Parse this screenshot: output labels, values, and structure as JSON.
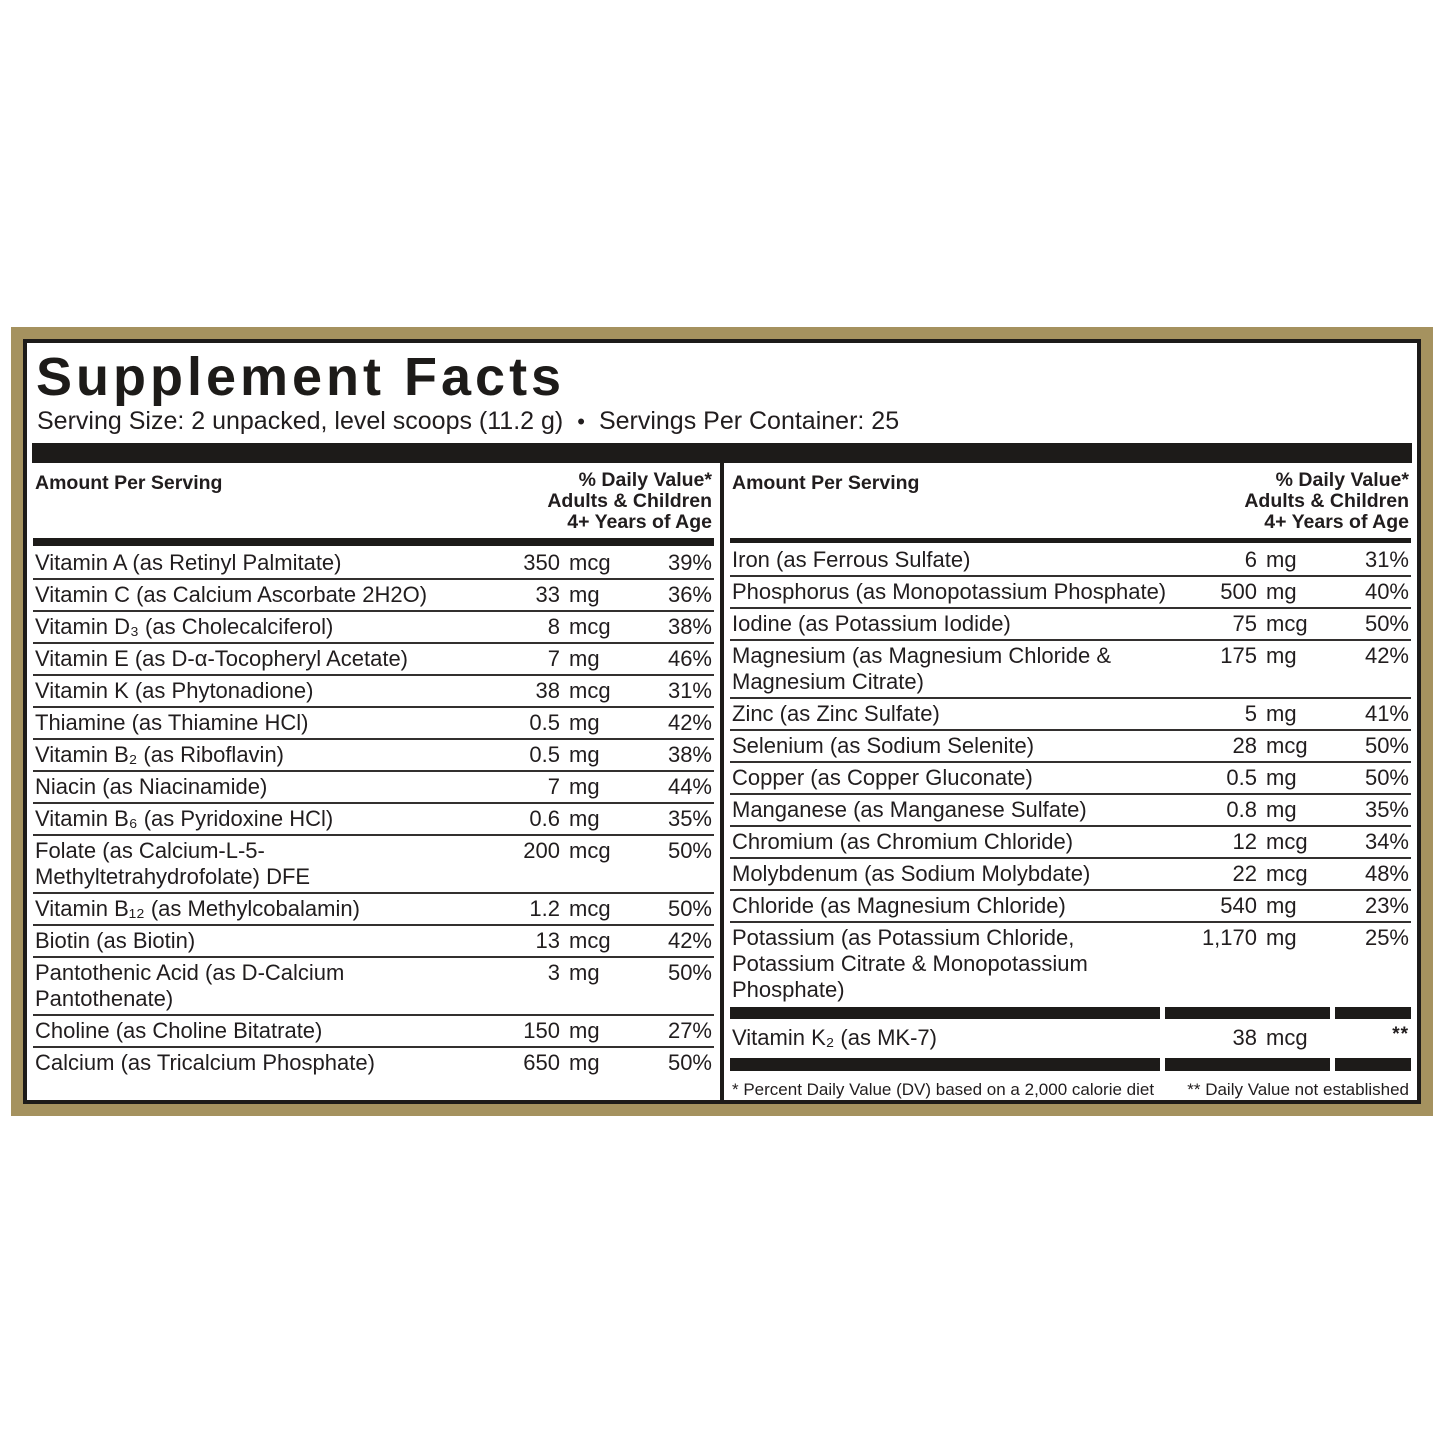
{
  "colors": {
    "border_gold": "#a5925f",
    "bar_black": "#1d1b19",
    "text": "#211d1e"
  },
  "label": {
    "title": "Supplement Facts",
    "serving_size": "Serving Size: 2 unpacked, level scoops (11.2 g)",
    "bullet": "•",
    "servings_per_container": "Servings Per Container: 25"
  },
  "columns": [
    {
      "header": {
        "amount_label": "Amount Per Serving",
        "dv_lines": [
          "% Daily Value*",
          "Adults & Children",
          "4+ Years of Age"
        ]
      },
      "rows": [
        {
          "name": "Vitamin A (as Retinyl Palmitate)",
          "amount": "350",
          "unit": "mcg",
          "dv": "39%"
        },
        {
          "name": "Vitamin C (as Calcium Ascorbate 2H2O)",
          "amount": "33",
          "unit": "mg",
          "dv": "36%"
        },
        {
          "name": "Vitamin D₃ (as Cholecalciferol)",
          "amount": "8",
          "unit": "mcg",
          "dv": "38%"
        },
        {
          "name": "Vitamin E (as D-α-Tocopheryl Acetate)",
          "amount": "7",
          "unit": "mg",
          "dv": "46%"
        },
        {
          "name": "Vitamin K (as Phytonadione)",
          "amount": "38",
          "unit": "mcg",
          "dv": "31%"
        },
        {
          "name": "Thiamine (as Thiamine HCl)",
          "amount": "0.5",
          "unit": "mg",
          "dv": "42%"
        },
        {
          "name": "Vitamin B₂ (as Riboflavin)",
          "amount": "0.5",
          "unit": "mg",
          "dv": "38%"
        },
        {
          "name": "Niacin (as Niacinamide)",
          "amount": "7",
          "unit": "mg",
          "dv": "44%"
        },
        {
          "name": "Vitamin B₆ (as Pyridoxine HCl)",
          "amount": "0.6",
          "unit": "mg",
          "dv": "35%"
        },
        {
          "name": "Folate (as Calcium-L-5-Methyltetrahydrofolate) DFE",
          "amount": "200",
          "unit": "mcg",
          "dv": "50%"
        },
        {
          "name": "Vitamin B₁₂ (as Methylcobalamin)",
          "amount": "1.2",
          "unit": "mcg",
          "dv": "50%"
        },
        {
          "name": "Biotin (as Biotin)",
          "amount": "13",
          "unit": "mcg",
          "dv": "42%"
        },
        {
          "name": "Pantothenic Acid (as D-Calcium Pantothenate)",
          "amount": "3",
          "unit": "mg",
          "dv": "50%"
        },
        {
          "name": "Choline (as Choline Bitatrate)",
          "amount": "150",
          "unit": "mg",
          "dv": "27%"
        },
        {
          "name": "Calcium (as Tricalcium Phosphate)",
          "amount": "650",
          "unit": "mg",
          "dv": "50%"
        }
      ]
    },
    {
      "header": {
        "amount_label": "Amount Per Serving",
        "dv_lines": [
          "% Daily Value*",
          "Adults & Children",
          "4+ Years of Age"
        ]
      },
      "rows": [
        {
          "name": "Iron (as Ferrous Sulfate)",
          "amount": "6",
          "unit": "mg",
          "dv": "31%"
        },
        {
          "name": "Phosphorus (as Monopotassium Phosphate)",
          "amount": "500",
          "unit": "mg",
          "dv": "40%"
        },
        {
          "name": "Iodine (as Potassium Iodide)",
          "amount": "75",
          "unit": "mcg",
          "dv": "50%"
        },
        {
          "name": "Magnesium (as Magnesium Chloride & Magnesium Citrate)",
          "amount": "175",
          "unit": "mg",
          "dv": "42%"
        },
        {
          "name": "Zinc (as Zinc Sulfate)",
          "amount": "5",
          "unit": "mg",
          "dv": "41%"
        },
        {
          "name": "Selenium (as Sodium Selenite)",
          "amount": "28",
          "unit": "mcg",
          "dv": "50%"
        },
        {
          "name": "Copper (as Copper Gluconate)",
          "amount": "0.5",
          "unit": "mg",
          "dv": "50%"
        },
        {
          "name": "Manganese (as Manganese Sulfate)",
          "amount": "0.8",
          "unit": "mg",
          "dv": "35%"
        },
        {
          "name": "Chromium (as Chromium Chloride)",
          "amount": "12",
          "unit": "mcg",
          "dv": "34%"
        },
        {
          "name": "Molybdenum (as Sodium Molybdate)",
          "amount": "22",
          "unit": "mcg",
          "dv": "48%"
        },
        {
          "name": "Chloride (as Magnesium Chloride)",
          "amount": "540",
          "unit": "mg",
          "dv": "23%"
        },
        {
          "name": "Potassium (as Potassium Chloride, Potassium Citrate & Monopotassium Phosphate)",
          "amount": "1,170",
          "unit": "mg",
          "dv": "25%"
        }
      ],
      "k2_row": {
        "name": "Vitamin K₂ (as MK-7)",
        "amount": "38",
        "unit": "mcg",
        "dv": "**"
      },
      "footnotes": {
        "daily_value": "*  Percent Daily Value (DV) based on a 2,000 calorie diet",
        "not_established": "** Daily Value not established"
      }
    }
  ]
}
